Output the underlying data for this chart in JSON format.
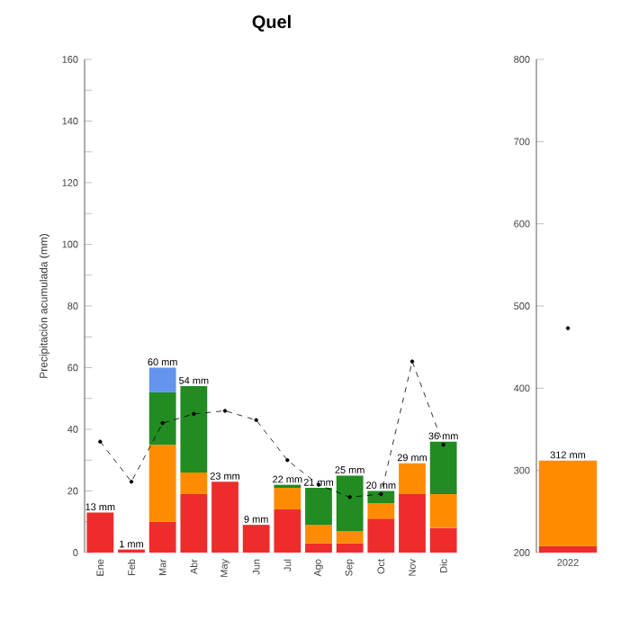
{
  "chart_data": [
    {
      "type": "bar",
      "stacked": true,
      "title": "Quel",
      "ylabel": "Precipitación acumulada (mm)",
      "categories": [
        "Ene",
        "Feb",
        "Mar",
        "Abr",
        "May",
        "Jun",
        "Jul",
        "Ago",
        "Sep",
        "Oct",
        "Nov",
        "Dic"
      ],
      "series": [
        {
          "color": "#ee2c2c",
          "values": [
            13,
            1,
            10,
            19,
            23,
            9,
            14,
            3,
            3,
            11,
            19,
            8
          ]
        },
        {
          "color": "#ff8c00",
          "values": [
            null,
            null,
            25,
            7,
            null,
            null,
            7,
            6,
            4,
            5,
            10,
            11
          ]
        },
        {
          "color": "#228b22",
          "values": [
            null,
            null,
            17,
            28,
            null,
            null,
            1,
            12,
            18,
            4,
            null,
            17
          ]
        },
        {
          "color": "#6495ed",
          "values": [
            null,
            null,
            8,
            null,
            null,
            null,
            null,
            null,
            null,
            null,
            null,
            null
          ]
        },
        {
          "type": "line",
          "color": "#000000",
          "marker": "circle",
          "line_style": "dashed",
          "values": [
            36,
            23,
            42,
            45,
            46,
            43,
            30,
            22,
            18,
            19,
            62,
            35
          ]
        }
      ],
      "value_labels": [
        "13 mm",
        "1 mm",
        "60 mm",
        "54 mm",
        "23 mm",
        "9 mm",
        "22 mm",
        "21 mm",
        "25 mm",
        "20 mm",
        "29 mm",
        "36 mm"
      ],
      "ylim": [
        0,
        160
      ],
      "yticks": [
        0,
        {
          "value": 10,
          "label": null
        },
        20,
        {
          "value": 30,
          "label": null
        },
        40,
        {
          "value": 50,
          "label": null
        },
        60,
        {
          "value": 70,
          "label": null
        },
        80,
        {
          "value": 90,
          "label": null
        },
        100,
        {
          "value": 110,
          "label": null
        },
        120,
        {
          "value": 130,
          "label": null
        },
        140,
        {
          "value": 150,
          "label": null
        },
        160
      ]
    },
    {
      "type": "bar",
      "categories": [
        "2022"
      ],
      "series": [
        {
          "color": "#ee2c2c",
          "base": [
            200
          ],
          "values": [
            8
          ]
        },
        {
          "color": "#ff8c00",
          "base": [
            208
          ],
          "values": [
            104
          ]
        },
        {
          "type": "line",
          "color": "#000000",
          "marker": "circle",
          "line_style": "dashed",
          "values": [
            473
          ]
        }
      ],
      "value_labels": [
        "312 mm"
      ],
      "ylim": [
        200,
        800
      ],
      "yticks": [
        200,
        300,
        400,
        500,
        600,
        700,
        800
      ]
    }
  ]
}
